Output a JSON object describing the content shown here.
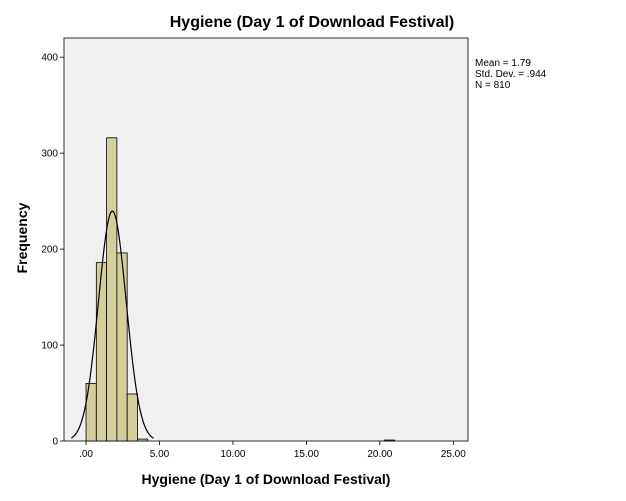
{
  "chart_data": {
    "type": "histogram",
    "title": "Hygiene (Day 1 of Download Festival)",
    "xlabel": "Hygiene (Day 1 of Download Festival)",
    "ylabel": "Frequency",
    "xlim": [
      -1.5,
      26.0
    ],
    "ylim": [
      0,
      420
    ],
    "x_ticks": [
      0,
      5,
      10,
      15,
      20,
      25
    ],
    "x_tick_labels": [
      ".00",
      "5.00",
      "10.00",
      "15.00",
      "20.00",
      "25.00"
    ],
    "y_ticks": [
      0,
      100,
      200,
      300,
      400
    ],
    "y_tick_labels": [
      "0",
      "100",
      "200",
      "300",
      "400"
    ],
    "bin_width": 0.7,
    "bins": [
      {
        "start": 0.0,
        "count": 60
      },
      {
        "start": 0.7,
        "count": 186
      },
      {
        "start": 1.4,
        "count": 316
      },
      {
        "start": 2.1,
        "count": 196
      },
      {
        "start": 2.8,
        "count": 49
      },
      {
        "start": 3.5,
        "count": 2
      },
      {
        "start": 20.3,
        "count": 1
      }
    ],
    "normal_curve": {
      "mean": 1.79,
      "sd": 0.944,
      "n": 810
    },
    "grid": false,
    "colors": {
      "plot_background": "#f0f0f0",
      "bar_fill": "#d3ce9b",
      "bar_stroke": "#000000",
      "curve": "#000000"
    }
  },
  "stats_box": {
    "mean": "Mean = 1.79",
    "sd": "Std. Dev. = .944",
    "n": "N = 810"
  }
}
